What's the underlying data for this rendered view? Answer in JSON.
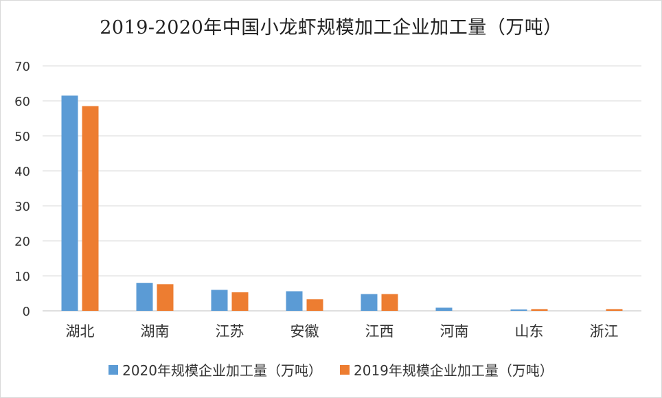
{
  "chart_data": {
    "type": "bar",
    "title": "2019-2020年中国小龙虾规模加工企业加工量（万吨）",
    "categories": [
      "湖北",
      "湖南",
      "江苏",
      "安徽",
      "江西",
      "河南",
      "山东",
      "浙江"
    ],
    "series": [
      {
        "name": "2020年规模企业加工量（万吨）",
        "color": "#5b9bd5",
        "values": [
          61.5,
          8.0,
          6.0,
          5.6,
          4.8,
          0.9,
          0.4,
          0
        ]
      },
      {
        "name": "2019年规模企业加工量（万吨）",
        "color": "#ed7d31",
        "values": [
          58.5,
          7.6,
          5.3,
          3.3,
          4.8,
          0,
          0.5,
          0.5
        ]
      }
    ],
    "ylim": [
      0,
      70
    ],
    "yticks": [
      0,
      10,
      20,
      30,
      40,
      50,
      60,
      70
    ],
    "xlabel": "",
    "ylabel": "",
    "grid": true,
    "legend_position": "bottom"
  }
}
